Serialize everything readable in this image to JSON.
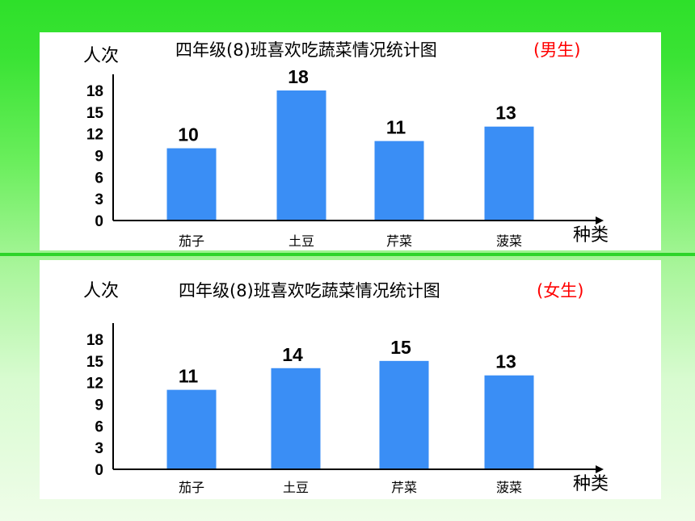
{
  "colors": {
    "bar": "#3a8ef5",
    "axis": "#000000",
    "gender_tag": "#ff0000"
  },
  "chart_data": [
    {
      "type": "bar",
      "title": "四年级(8)班喜欢吃蔬菜情况统计图",
      "subtitle": "(男生)",
      "ylabel": "人次",
      "xlabel": "种类",
      "categories": [
        "茄子",
        "土豆",
        "芹菜",
        "菠菜"
      ],
      "values": [
        10,
        18,
        11,
        13
      ],
      "yticks": [
        "0",
        "3",
        "6",
        "9",
        "12",
        "15",
        "18"
      ],
      "ylim": [
        0,
        18
      ],
      "grid": false,
      "legend": "none"
    },
    {
      "type": "bar",
      "title": "四年级(8)班喜欢吃蔬菜情况统计图",
      "subtitle": "(女生)",
      "ylabel": "人次",
      "xlabel": "种类",
      "categories": [
        "茄子",
        "土豆",
        "芹菜",
        "菠菜"
      ],
      "values": [
        11,
        14,
        15,
        13
      ],
      "yticks": [
        "0",
        "3",
        "6",
        "9",
        "12",
        "15",
        "18"
      ],
      "ylim": [
        0,
        18
      ],
      "grid": false,
      "legend": "none"
    }
  ]
}
